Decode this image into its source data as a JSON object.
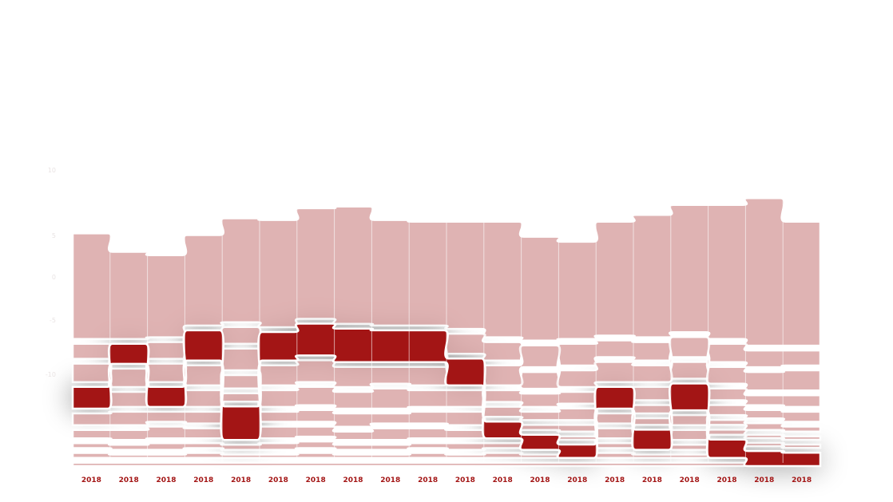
{
  "chart_data": {
    "type": "area",
    "subtype": "ribbon-streamgraph",
    "x": [
      "2018",
      "2018",
      "2018",
      "2018",
      "2018",
      "2018",
      "2018",
      "2018",
      "2018",
      "2018",
      "2018",
      "2018",
      "2018",
      "2018",
      "2018",
      "2018",
      "2018",
      "2018",
      "2018",
      "2018"
    ],
    "x_tick_labels": [
      "2018",
      "2018",
      "2018",
      "2018",
      "2018",
      "2018",
      "2018",
      "2018",
      "2018",
      "2018",
      "2018",
      "2018",
      "2018",
      "2018",
      "2018",
      "2018",
      "2018",
      "2018",
      "2018",
      "2018"
    ],
    "side_tick_labels": [
      "10",
      "5",
      "0",
      "-5",
      "-10"
    ],
    "series": [
      {
        "color": "#d9a3a3",
        "ranks": [
          1,
          1,
          1,
          1,
          1,
          1,
          1,
          1,
          1,
          1,
          1,
          1,
          1,
          1,
          1,
          1,
          1,
          1,
          1,
          1
        ],
        "values": [
          6.3,
          5.2,
          4.9,
          5.4,
          6.2,
          6.4,
          6.6,
          7.0,
          6.3,
          6.2,
          6.4,
          6.9,
          6.2,
          5.8,
          6.8,
          7.3,
          7.6,
          8.0,
          8.8,
          7.4
        ]
      },
      {
        "color": "#a31515",
        "ranks": [
          4,
          2,
          4,
          2,
          6,
          2,
          2,
          2,
          2,
          2,
          3,
          6,
          7,
          8,
          4,
          7,
          4,
          8,
          9,
          9
        ],
        "values": [
          1.3,
          1.2,
          1.2,
          1.8,
          2.0,
          1.7,
          1.9,
          2.0,
          1.9,
          1.9,
          1.6,
          1.0,
          0.9,
          0.8,
          1.3,
          1.2,
          1.6,
          1.1,
          0.9,
          0.8
        ]
      },
      {
        "color": "#d9a3a3",
        "ranks": [
          2,
          3,
          2,
          3,
          2,
          3,
          3,
          3,
          3,
          3,
          2,
          2,
          3,
          2,
          2,
          2,
          3,
          2,
          2,
          2
        ],
        "values": [
          0.9,
          1.1,
          1.0,
          1.2,
          1.0,
          1.2,
          1.3,
          1.2,
          1.0,
          1.1,
          1.2,
          1.1,
          1.0,
          1.3,
          1.0,
          1.1,
          1.0,
          1.1,
          1.0,
          0.9
        ]
      },
      {
        "color": "#d9a3a3",
        "ranks": [
          3,
          4,
          3,
          4,
          3,
          4,
          4,
          4,
          4,
          4,
          4,
          3,
          2,
          3,
          3,
          3,
          2,
          3,
          3,
          3
        ],
        "values": [
          1.1,
          0.9,
          1.1,
          1.0,
          1.3,
          1.0,
          1.1,
          1.0,
          1.2,
          1.0,
          1.0,
          1.2,
          1.3,
          1.0,
          1.2,
          1.0,
          1.2,
          1.0,
          1.1,
          1.2
        ]
      },
      {
        "color": "#d9a3a3",
        "ranks": [
          5,
          5,
          5,
          5,
          4,
          5,
          5,
          5,
          5,
          5,
          5,
          4,
          4,
          4,
          5,
          4,
          5,
          4,
          4,
          4
        ],
        "values": [
          0.7,
          0.8,
          0.6,
          0.7,
          0.8,
          0.6,
          0.7,
          0.8,
          0.6,
          0.7,
          0.8,
          0.7,
          0.8,
          0.7,
          0.6,
          0.8,
          0.6,
          0.7,
          0.6,
          0.7
        ]
      },
      {
        "color": "#d9a3a3",
        "ranks": [
          6,
          6,
          6,
          6,
          5,
          6,
          6,
          6,
          6,
          6,
          6,
          5,
          5,
          5,
          6,
          5,
          6,
          5,
          5,
          5
        ],
        "values": [
          0.5,
          0.6,
          0.7,
          0.6,
          0.5,
          0.7,
          0.6,
          0.5,
          0.7,
          0.6,
          0.5,
          0.6,
          0.5,
          0.7,
          0.6,
          0.5,
          0.6,
          0.6,
          0.5,
          0.6
        ]
      },
      {
        "color": "#d9a3a3",
        "ranks": [
          7,
          7,
          7,
          7,
          7,
          7,
          7,
          7,
          7,
          7,
          7,
          7,
          6,
          6,
          7,
          6,
          7,
          6,
          6,
          6
        ],
        "values": [
          0.3,
          0.3,
          0.4,
          0.3,
          0.3,
          0.4,
          0.4,
          0.3,
          0.3,
          0.3,
          0.4,
          0.3,
          0.3,
          0.4,
          0.3,
          0.4,
          0.3,
          0.3,
          0.4,
          0.3
        ]
      },
      {
        "color": "#d9a3a3",
        "ranks": [
          8,
          8,
          8,
          8,
          8,
          8,
          8,
          8,
          8,
          8,
          8,
          8,
          8,
          7,
          8,
          8,
          8,
          7,
          7,
          7
        ],
        "values": [
          0.3,
          0.2,
          0.2,
          0.3,
          0.2,
          0.2,
          0.3,
          0.2,
          0.2,
          0.3,
          0.2,
          0.3,
          0.2,
          0.2,
          0.3,
          0.2,
          0.2,
          0.3,
          0.2,
          0.2
        ]
      },
      {
        "color": "#d9a3a3",
        "ranks": [
          9,
          9,
          9,
          9,
          9,
          9,
          9,
          9,
          9,
          9,
          9,
          9,
          9,
          9,
          9,
          9,
          9,
          9,
          8,
          8
        ],
        "values": [
          0.2,
          0.2,
          0.2,
          0.2,
          0.2,
          0.2,
          0.2,
          0.2,
          0.2,
          0.2,
          0.2,
          0.2,
          0.2,
          0.2,
          0.2,
          0.2,
          0.2,
          0.2,
          0.2,
          0.2
        ]
      }
    ],
    "title": "",
    "xlabel": "",
    "ylabel": "",
    "grid": true,
    "legend": "none"
  }
}
